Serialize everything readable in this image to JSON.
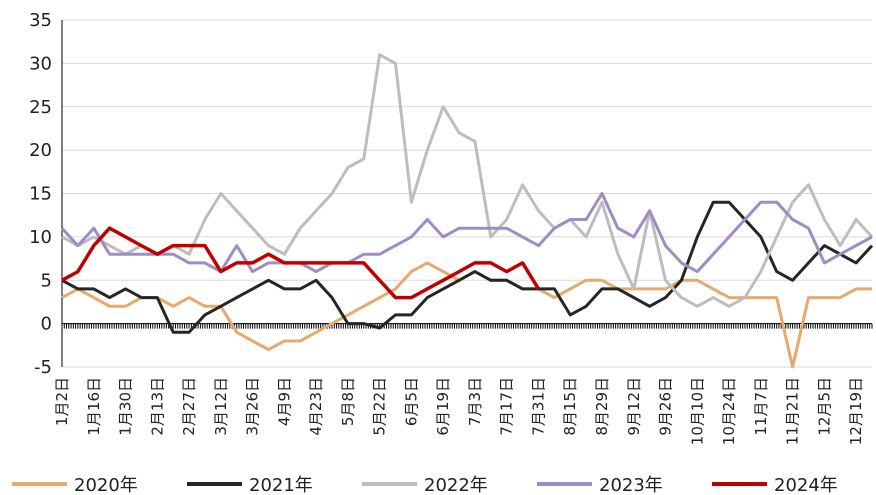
{
  "chart_data": {
    "type": "line",
    "categories": [
      "1月2日",
      null,
      "1月16日",
      null,
      "1月30日",
      null,
      "2月13日",
      null,
      "2月27日",
      null,
      "3月12日",
      null,
      "3月26日",
      null,
      "4月9日",
      null,
      "4月23日",
      null,
      "5月8日",
      null,
      "5月22日",
      null,
      "6月5日",
      null,
      "6月19日",
      null,
      "7月3日",
      null,
      "7月17日",
      null,
      "7月31日",
      null,
      "8月15日",
      null,
      "8月29日",
      null,
      "9月12日",
      null,
      "9月26日",
      null,
      "10月10日",
      null,
      "10月24日",
      null,
      "11月7日",
      null,
      "11月21日",
      null,
      "12月5日",
      null,
      "12月19日",
      null
    ],
    "ylim": [
      -5,
      35
    ],
    "yticks": [
      -5,
      0,
      5,
      10,
      15,
      20,
      25,
      30,
      35
    ],
    "grid": true,
    "legend": "bottom",
    "series": [
      {
        "name": "2020年",
        "color": "#e8a96e",
        "values": [
          3,
          4,
          3,
          2,
          2,
          3,
          3,
          2,
          3,
          2,
          2,
          -1,
          -2,
          -3,
          -2,
          -2,
          -1,
          0,
          1,
          2,
          3,
          4,
          6,
          7,
          6,
          5,
          6,
          5,
          5,
          4,
          4,
          3,
          4,
          5,
          5,
          4,
          4,
          4,
          4,
          5,
          5,
          4,
          3,
          3,
          3,
          3,
          -5,
          3,
          3,
          3,
          4,
          4
        ]
      },
      {
        "name": "2021年",
        "color": "#262626",
        "values": [
          5,
          4,
          4,
          3,
          4,
          3,
          3,
          -1,
          -1,
          1,
          2,
          3,
          4,
          5,
          4,
          4,
          5,
          3,
          0,
          0,
          -0.5,
          1,
          1,
          3,
          4,
          5,
          6,
          5,
          5,
          4,
          4,
          4,
          1,
          2,
          4,
          4,
          3,
          2,
          3,
          5,
          10,
          14,
          14,
          12,
          10,
          6,
          5,
          7,
          9,
          8,
          7,
          9
        ]
      },
      {
        "name": "2022年",
        "color": "#bdbdbd",
        "values": [
          10,
          9,
          10,
          9,
          8,
          9,
          8,
          9,
          8,
          12,
          15,
          13,
          11,
          9,
          8,
          11,
          13,
          15,
          18,
          19,
          31,
          30,
          14,
          20,
          25,
          22,
          21,
          10,
          12,
          16,
          13,
          11,
          12,
          10,
          14,
          8,
          4,
          13,
          5,
          3,
          2,
          3,
          2,
          3,
          6,
          10,
          14,
          16,
          12,
          9,
          12,
          10
        ]
      },
      {
        "name": "2023年",
        "color": "#a08cc4",
        "values": [
          11,
          9,
          11,
          8,
          8,
          8,
          8,
          8,
          7,
          7,
          6,
          9,
          6,
          7,
          7,
          7,
          6,
          7,
          7,
          8,
          8,
          9,
          10,
          12,
          10,
          11,
          11,
          11,
          11,
          10,
          9,
          11,
          12,
          12,
          15,
          11,
          10,
          13,
          9,
          7,
          6,
          8,
          10,
          12,
          14,
          14,
          12,
          11,
          7,
          8,
          9,
          10
        ]
      },
      {
        "name": "2024年",
        "color": "#c00000",
        "values": [
          5,
          6,
          9,
          11,
          10,
          9,
          8,
          9,
          9,
          9,
          6,
          7,
          7,
          8,
          7,
          7,
          7,
          7,
          7,
          7,
          5,
          3,
          3,
          4,
          5,
          6,
          7,
          7,
          6,
          7,
          4,
          null,
          null,
          null,
          null,
          null,
          null,
          null,
          null,
          null,
          null,
          null,
          null,
          null,
          null,
          null,
          null,
          null,
          null,
          null,
          null,
          null
        ]
      }
    ]
  }
}
